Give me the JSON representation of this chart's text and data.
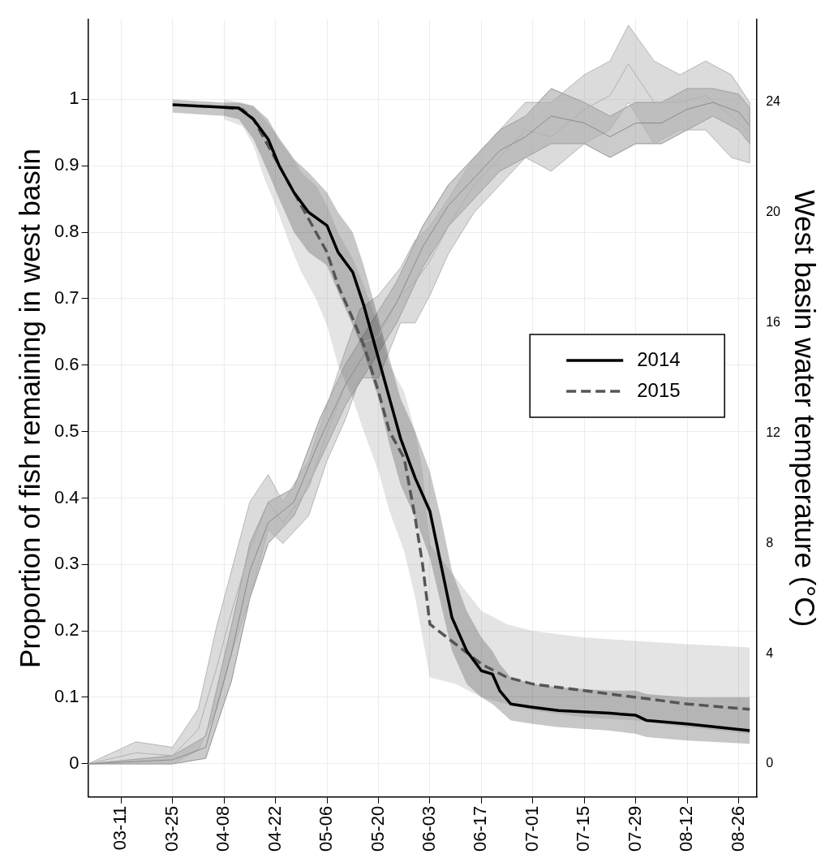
{
  "chart_data": {
    "type": "line",
    "xlabel": null,
    "ylabel": "Proportion of fish remaining in west basin",
    "y2label": "West basin water temperature (°C)",
    "xlim": [
      "--03-02",
      "--08-31"
    ],
    "xticks": [
      {
        "value": "--03-11",
        "label": "03-11"
      },
      {
        "value": "--03-25",
        "label": "03-25"
      },
      {
        "value": "--04-08",
        "label": "04-08"
      },
      {
        "value": "--04-22",
        "label": "04-22"
      },
      {
        "value": "--05-06",
        "label": "05-06"
      },
      {
        "value": "--05-20",
        "label": "05-20"
      },
      {
        "value": "--06-03",
        "label": "06-03"
      },
      {
        "value": "--06-17",
        "label": "06-17"
      },
      {
        "value": "--07-01",
        "label": "07-01"
      },
      {
        "value": "--07-15",
        "label": "07-15"
      },
      {
        "value": "--07-29",
        "label": "07-29"
      },
      {
        "value": "--08-12",
        "label": "08-12"
      },
      {
        "value": "--08-26",
        "label": "08-26"
      }
    ],
    "ylim": [
      -0.05,
      1.12
    ],
    "yticks": [
      0,
      0.1,
      0.2,
      0.3,
      0.4,
      0.5,
      0.6,
      0.7,
      0.8,
      0.9,
      1
    ],
    "y2lim": [
      -1.2,
      27
    ],
    "y2ticks": [
      0,
      4,
      8,
      12,
      16,
      20,
      24
    ],
    "grid": true,
    "legend": "right",
    "marker": "none",
    "series": [
      {
        "axis": "y2",
        "color": "#8c8c8c",
        "x": [
          "--03-02",
          "--03-25",
          "--04-03",
          "--04-10",
          "--04-15",
          "--04-20",
          "--04-27",
          "--05-04",
          "--05-11",
          "--05-18",
          "--05-25",
          "--06-01",
          "--06-08",
          "--06-15",
          "--06-22",
          "--06-29",
          "--07-06",
          "--07-15",
          "--07-22",
          "--07-29",
          "--08-05",
          "--08-12",
          "--08-19",
          "--08-26",
          "--08-29"
        ],
        "lower": [
          0,
          0,
          0.2,
          3,
          6,
          8,
          9,
          11,
          13,
          14.5,
          16,
          18,
          19.5,
          20.5,
          21.5,
          22,
          22.5,
          22.5,
          22,
          22.5,
          22.5,
          23,
          23.5,
          23,
          22.5
        ],
        "upper": [
          0,
          0.3,
          1,
          5,
          8,
          9.5,
          10,
          12.5,
          14.5,
          16,
          17.5,
          19.5,
          21,
          22,
          23,
          23.5,
          24.5,
          24,
          23.5,
          24,
          24,
          24.5,
          24.5,
          24.3,
          23.8
        ],
        "values": [
          0,
          0.15,
          0.6,
          4,
          7,
          8.75,
          9.5,
          11.75,
          13.75,
          15.25,
          16.75,
          18.75,
          20.25,
          21.25,
          22.25,
          22.75,
          23.5,
          23.25,
          22.75,
          23.25,
          23.25,
          23.75,
          24,
          23.65,
          23.15
        ]
      },
      {
        "axis": "y2",
        "color": "#b0b0b0",
        "x": [
          "--03-02",
          "--03-15",
          "--03-25",
          "--04-01",
          "--04-06",
          "--04-10",
          "--04-15",
          "--04-20",
          "--04-24",
          "--05-01",
          "--05-06",
          "--05-11",
          "--05-15",
          "--05-20",
          "--05-26",
          "--05-30",
          "--06-03",
          "--06-08",
          "--06-15",
          "--06-22",
          "--06-29",
          "--07-06",
          "--07-15",
          "--07-22",
          "--07-27",
          "--08-03",
          "--08-10",
          "--08-17",
          "--08-24",
          "--08-29"
        ],
        "lower": [
          0,
          0,
          0,
          0.5,
          2,
          4,
          6,
          8.5,
          8,
          9,
          11,
          12.5,
          14,
          14,
          16,
          16,
          17,
          18.5,
          20,
          21,
          22,
          21.5,
          22.5,
          23,
          24,
          22.5,
          23,
          23,
          22,
          21.8
        ],
        "upper": [
          0,
          0.8,
          0.6,
          2,
          5,
          7,
          9.5,
          10.5,
          9.5,
          11,
          13,
          15,
          16.5,
          17,
          18,
          19,
          19.5,
          20.5,
          22,
          23,
          24,
          24,
          25,
          25.5,
          26.8,
          25.5,
          25,
          25.5,
          25,
          24
        ],
        "values": [
          0,
          0.4,
          0.3,
          1.25,
          3.5,
          5.5,
          7.75,
          9.5,
          8.75,
          10,
          12,
          13.75,
          15.25,
          15.5,
          17,
          17.5,
          18.25,
          19.5,
          21,
          22,
          23,
          22.75,
          23.75,
          24.25,
          25.4,
          24,
          24,
          24.25,
          23.5,
          22.9
        ]
      },
      {
        "name": "2014",
        "color": "#000000",
        "line_style": "solid",
        "x": [
          "--03-25",
          "--04-08",
          "--04-12",
          "--04-16",
          "--04-20",
          "--04-23",
          "--04-27",
          "--05-01",
          "--05-06",
          "--05-09",
          "--05-13",
          "--05-16",
          "--05-20",
          "--05-23",
          "--05-26",
          "--05-30",
          "--06-03",
          "--06-06",
          "--06-09",
          "--06-13",
          "--06-17",
          "--06-20",
          "--06-22",
          "--06-25",
          "--07-01",
          "--07-08",
          "--07-22",
          "--07-29",
          "--08-01",
          "--08-12",
          "--08-29"
        ],
        "values": [
          0.992,
          0.988,
          0.987,
          0.97,
          0.94,
          0.9,
          0.86,
          0.83,
          0.81,
          0.77,
          0.74,
          0.69,
          0.61,
          0.55,
          0.49,
          0.43,
          0.38,
          0.3,
          0.22,
          0.17,
          0.14,
          0.135,
          0.11,
          0.09,
          0.085,
          0.08,
          0.076,
          0.073,
          0.065,
          0.06,
          0.05
        ],
        "lower": [
          0.98,
          0.975,
          0.97,
          0.94,
          0.89,
          0.85,
          0.8,
          0.77,
          0.75,
          0.71,
          0.66,
          0.62,
          0.55,
          0.48,
          0.42,
          0.37,
          0.31,
          0.24,
          0.17,
          0.12,
          0.1,
          0.09,
          0.08,
          0.065,
          0.06,
          0.055,
          0.05,
          0.045,
          0.04,
          0.035,
          0.03
        ],
        "upper": [
          1,
          0.995,
          0.995,
          0.99,
          0.97,
          0.94,
          0.91,
          0.89,
          0.86,
          0.83,
          0.8,
          0.75,
          0.67,
          0.61,
          0.55,
          0.5,
          0.44,
          0.37,
          0.29,
          0.23,
          0.19,
          0.17,
          0.15,
          0.13,
          0.12,
          0.115,
          0.11,
          0.11,
          0.105,
          0.1,
          0.1
        ]
      },
      {
        "name": "2015",
        "color": "#555555",
        "line_style": "dashed",
        "x": [
          "--04-08",
          "--04-13",
          "--04-16",
          "--04-19",
          "--04-22",
          "--04-26",
          "--04-29",
          "--05-03",
          "--05-06",
          "--05-09",
          "--05-13",
          "--05-16",
          "--05-20",
          "--05-23",
          "--05-27",
          "--05-30",
          "--06-01",
          "--06-03",
          "--06-10",
          "--06-17",
          "--06-24",
          "--07-01",
          "--07-15",
          "--07-29",
          "--08-12",
          "--08-29"
        ],
        "values": [
          0.988,
          0.985,
          0.97,
          0.94,
          0.91,
          0.87,
          0.84,
          0.8,
          0.77,
          0.72,
          0.67,
          0.63,
          0.56,
          0.5,
          0.46,
          0.37,
          0.3,
          0.21,
          0.18,
          0.15,
          0.13,
          0.12,
          0.11,
          0.1,
          0.09,
          0.082
        ],
        "lower": [
          0.97,
          0.96,
          0.93,
          0.88,
          0.84,
          0.78,
          0.74,
          0.7,
          0.66,
          0.6,
          0.55,
          0.5,
          0.44,
          0.38,
          0.32,
          0.25,
          0.19,
          0.13,
          0.12,
          0.1,
          0.09,
          0.08,
          0.07,
          0.065,
          0.055,
          0.045
        ],
        "upper": [
          1,
          0.995,
          0.99,
          0.97,
          0.95,
          0.92,
          0.89,
          0.87,
          0.84,
          0.8,
          0.76,
          0.72,
          0.66,
          0.6,
          0.56,
          0.5,
          0.44,
          0.33,
          0.28,
          0.23,
          0.21,
          0.2,
          0.19,
          0.185,
          0.18,
          0.175
        ]
      }
    ]
  }
}
